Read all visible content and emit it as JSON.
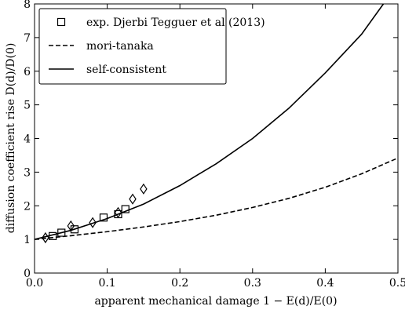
{
  "chart_data": {
    "type": "line",
    "xlabel": "apparent mechanical damage 1 − E(d)/E(0)",
    "ylabel": "diffusion coefficient rise D(d)/D(0)",
    "xlim": [
      0,
      0.5
    ],
    "ylim": [
      0,
      8
    ],
    "xticks": [
      {
        "value": 0,
        "label": "0.0"
      },
      0.1,
      0.2,
      0.3,
      0.4,
      0.5
    ],
    "yticks": [
      0,
      1,
      2,
      3,
      4,
      5,
      6,
      7,
      8
    ],
    "legend": "upper left",
    "series": [
      {
        "name": "exp. Djerbi Tegguer et al (2013)",
        "kind": "marker",
        "marker": "square",
        "color": "#000000",
        "x": [
          0.025,
          0.037,
          0.055,
          0.095,
          0.115,
          0.125
        ],
        "values": [
          1.1,
          1.2,
          1.3,
          1.65,
          1.75,
          1.9
        ]
      },
      {
        "kind": "marker",
        "marker": "diamond",
        "color": "#000000",
        "x": [
          0.015,
          0.05,
          0.08,
          0.115,
          0.135,
          0.15
        ],
        "values": [
          1.05,
          1.4,
          1.5,
          1.8,
          2.2,
          2.5
        ]
      },
      {
        "name": "mori-tanaka",
        "kind": "line",
        "dash": "dashed",
        "color": "#000000",
        "x": [
          0,
          0.05,
          0.1,
          0.15,
          0.2,
          0.25,
          0.3,
          0.35,
          0.4,
          0.45,
          0.5
        ],
        "values": [
          1.0,
          1.11,
          1.23,
          1.37,
          1.53,
          1.72,
          1.95,
          2.22,
          2.55,
          2.95,
          3.42
        ]
      },
      {
        "name": "self-consistent",
        "kind": "line",
        "dash": "solid",
        "color": "#000000",
        "x": [
          0,
          0.05,
          0.1,
          0.15,
          0.2,
          0.25,
          0.3,
          0.35,
          0.4,
          0.45,
          0.48
        ],
        "values": [
          1.0,
          1.27,
          1.62,
          2.05,
          2.6,
          3.25,
          4.0,
          4.9,
          5.95,
          7.1,
          8.0
        ]
      }
    ]
  }
}
